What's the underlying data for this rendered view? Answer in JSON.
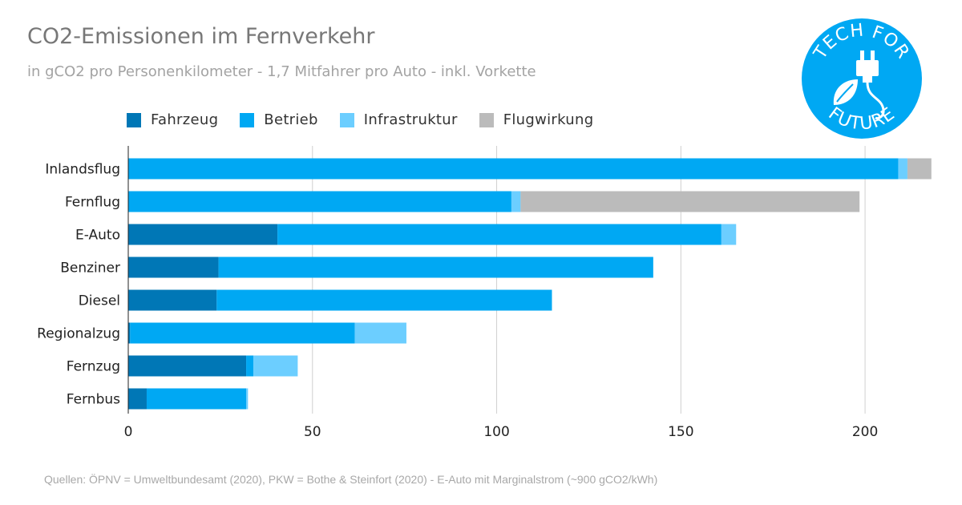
{
  "chart_data": {
    "type": "bar",
    "orientation": "horizontal",
    "stacked": true,
    "title": "CO2-Emissionen im Fernverkehr",
    "subtitle": "in gCO2 pro Personenkilometer - 1,7 Mitfahrer pro Auto - inkl. Vorkette",
    "categories": [
      "Inlandsflug",
      "Fernflug",
      "E-Auto",
      "Benziner",
      "Diesel",
      "Regionalzug",
      "Fernzug",
      "Fernbus"
    ],
    "series": [
      {
        "name": "Fahrzeug",
        "color": "#0077b6",
        "values": [
          0,
          0,
          40.5,
          24.5,
          24,
          0.5,
          32,
          5
        ]
      },
      {
        "name": "Betrieb",
        "color": "#00a8f3",
        "values": [
          209,
          104,
          120.5,
          118,
          91,
          61,
          2,
          27
        ]
      },
      {
        "name": "Infrastruktur",
        "color": "#6cceff",
        "values": [
          2.5,
          2.5,
          4,
          0,
          0,
          14,
          12,
          0.5
        ]
      },
      {
        "name": "Flugwirkung",
        "color": "#bbbbbb",
        "values": [
          6.5,
          92,
          0,
          0,
          0,
          0,
          0,
          0
        ]
      }
    ],
    "xlim": [
      0,
      220
    ],
    "xticks": [
      0,
      50,
      100,
      150,
      200
    ],
    "xgrid": true,
    "legend_position": "top-left",
    "source": "Quellen: ÖPNV = Umweltbundesamt (2020), PKW = Bothe & Steinfort (2020) - E-Auto mit Marginalstrom (~900 gCO2/kWh)"
  },
  "logo": {
    "top_text": "TECH FOR",
    "bottom_text": "FUTURE",
    "color": "#00a8f3",
    "icon": "plug-leaf-icon"
  }
}
